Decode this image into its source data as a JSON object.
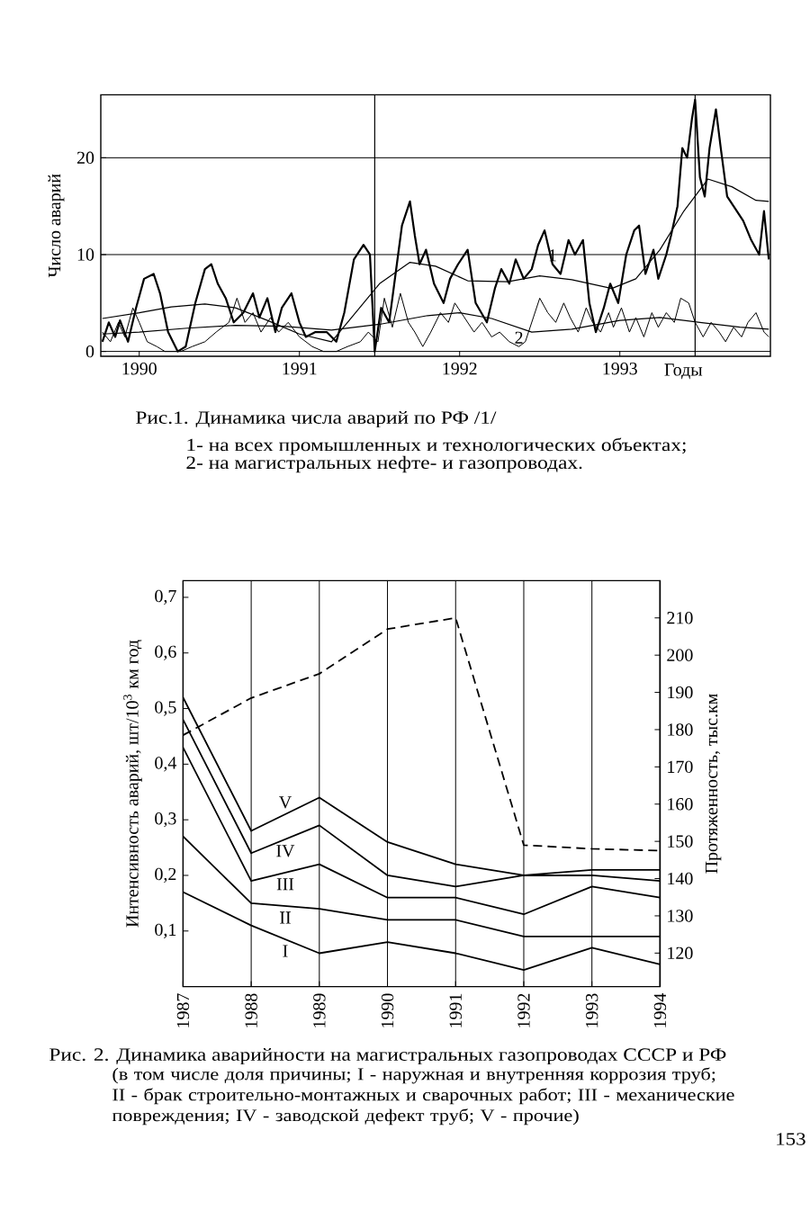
{
  "chart_data": [
    {
      "type": "line",
      "title": "Рис.1. Динамика числа аварий по РФ /1/",
      "annotations": [
        "1- на всех промышленных и технологических объектах;",
        "2- на магистральных нефте- и газопроводах."
      ],
      "xlabel": "Годы",
      "ylabel": "Число аварий",
      "xlim": [
        1989.76,
        1993.94
      ],
      "xticks": [
        1990,
        1991,
        1992,
        1993
      ],
      "ylim": [
        -0.5,
        26.5
      ],
      "yticks": [
        0,
        10,
        20
      ],
      "grid": "y",
      "ref_lines": [
        {
          "axis": "x",
          "value": 1991.47
        },
        {
          "axis": "x",
          "value": 1993.47
        }
      ],
      "series": [
        {
          "name": "1",
          "color": "#000000",
          "x": [
            1989.77,
            1989.81,
            1989.85,
            1989.88,
            1989.93,
            1989.98,
            1990.03,
            1990.09,
            1990.13,
            1990.18,
            1990.24,
            1990.29,
            1990.35,
            1990.41,
            1990.45,
            1990.49,
            1990.54,
            1990.59,
            1990.65,
            1990.71,
            1990.75,
            1990.8,
            1990.85,
            1990.89,
            1990.95,
            1991.0,
            1991.04,
            1991.1,
            1991.17,
            1991.23,
            1991.28,
            1991.34,
            1991.4,
            1991.44,
            1991.47,
            1991.51,
            1991.56,
            1991.6,
            1991.64,
            1991.69,
            1991.72,
            1991.75,
            1991.79,
            1991.84,
            1991.9,
            1991.94,
            1991.99,
            1992.05,
            1992.1,
            1992.17,
            1992.22,
            1992.26,
            1992.31,
            1992.35,
            1992.4,
            1992.45,
            1992.49,
            1992.53,
            1992.58,
            1992.63,
            1992.68,
            1992.72,
            1992.77,
            1992.81,
            1992.85,
            1992.9,
            1992.94,
            1992.99,
            1993.04,
            1993.09,
            1993.12,
            1993.16,
            1993.21,
            1993.24,
            1993.29,
            1993.32,
            1993.36,
            1993.39,
            1993.42,
            1993.45,
            1993.47,
            1993.5,
            1993.53,
            1993.56,
            1993.6,
            1993.63,
            1993.67,
            1993.71,
            1993.77,
            1993.82,
            1993.87,
            1993.9,
            1993.93
          ],
          "values": [
            1.0,
            3.0,
            1.5,
            3.2,
            1.0,
            4.5,
            7.5,
            8.0,
            6.0,
            2.0,
            0.0,
            0.5,
            5.0,
            8.5,
            9.0,
            7.0,
            5.5,
            3.0,
            4.0,
            6.0,
            3.5,
            5.5,
            2.0,
            4.5,
            6.0,
            3.0,
            1.5,
            2.0,
            2.0,
            1.0,
            4.0,
            9.5,
            11.0,
            10.0,
            0.0,
            4.5,
            3.0,
            8.0,
            13.0,
            15.5,
            12.0,
            9.0,
            10.5,
            7.0,
            5.0,
            7.5,
            9.0,
            10.5,
            5.0,
            3.0,
            6.5,
            8.5,
            7.0,
            9.5,
            7.5,
            8.5,
            11.0,
            12.5,
            9.0,
            8.0,
            11.5,
            10.0,
            11.5,
            5.0,
            2.0,
            4.5,
            7.0,
            5.0,
            10.0,
            12.5,
            13.0,
            8.0,
            10.5,
            7.5,
            10.0,
            12.0,
            15.0,
            21.0,
            20.0,
            24.0,
            26.0,
            18.0,
            16.0,
            21.0,
            25.0,
            21.0,
            16.0,
            15.0,
            13.5,
            11.5,
            10.0,
            14.5,
            9.5
          ]
        },
        {
          "name": "2",
          "color": "#000000",
          "x": [
            1989.77,
            1989.82,
            1989.87,
            1989.91,
            1989.96,
            1990.0,
            1990.05,
            1990.11,
            1990.16,
            1990.26,
            1990.33,
            1990.41,
            1990.48,
            1990.56,
            1990.61,
            1990.66,
            1990.71,
            1990.76,
            1990.82,
            1990.87,
            1990.93,
            1991.0,
            1991.08,
            1991.15,
            1991.23,
            1991.3,
            1991.38,
            1991.43,
            1991.49,
            1991.53,
            1991.58,
            1991.63,
            1991.68,
            1991.72,
            1991.77,
            1991.82,
            1991.88,
            1991.93,
            1991.97,
            1992.03,
            1992.09,
            1992.14,
            1992.2,
            1992.25,
            1992.31,
            1992.37,
            1992.41,
            1992.46,
            1992.5,
            1992.55,
            1992.6,
            1992.65,
            1992.69,
            1992.74,
            1992.79,
            1992.83,
            1992.88,
            1992.93,
            1992.96,
            1993.01,
            1993.06,
            1993.1,
            1993.15,
            1993.2,
            1993.24,
            1993.29,
            1993.34,
            1993.38,
            1993.43,
            1993.47,
            1993.52,
            1993.57,
            1993.62,
            1993.66,
            1993.71,
            1993.76,
            1993.8,
            1993.85,
            1993.9,
            1993.93
          ],
          "values": [
            2.0,
            1.0,
            3.0,
            1.5,
            4.5,
            3.0,
            1.0,
            0.5,
            0.0,
            0.0,
            0.5,
            1.0,
            2.0,
            3.0,
            5.5,
            3.0,
            4.0,
            2.0,
            3.5,
            2.0,
            3.0,
            1.5,
            0.5,
            0.0,
            0.0,
            0.5,
            1.0,
            2.0,
            1.0,
            5.5,
            2.5,
            6.0,
            3.0,
            2.0,
            0.5,
            2.0,
            4.0,
            3.0,
            5.0,
            3.5,
            2.0,
            3.0,
            1.5,
            2.0,
            1.0,
            0.5,
            1.0,
            3.5,
            5.5,
            4.0,
            3.0,
            5.0,
            3.5,
            2.0,
            4.5,
            3.0,
            2.0,
            4.0,
            2.5,
            4.5,
            2.0,
            3.5,
            1.5,
            4.0,
            2.5,
            4.0,
            3.0,
            5.5,
            5.0,
            3.0,
            1.5,
            3.0,
            2.0,
            1.0,
            2.5,
            1.5,
            3.0,
            4.0,
            2.0,
            1.5
          ]
        },
        {
          "color": "#000000",
          "x": [
            1989.77,
            1990.0,
            1990.2,
            1990.41,
            1990.6,
            1990.8,
            1991.0,
            1991.2,
            1991.35,
            1991.5,
            1991.69,
            1991.85,
            1992.05,
            1992.3,
            1992.5,
            1992.7,
            1992.95,
            1993.1,
            1993.25,
            1993.4,
            1993.55,
            1993.7,
            1993.85,
            1993.93
          ],
          "values": [
            3.4,
            4.0,
            4.6,
            4.9,
            4.5,
            3.2,
            1.8,
            1.0,
            4.0,
            7.0,
            9.2,
            8.8,
            7.3,
            7.2,
            7.8,
            7.4,
            6.5,
            7.5,
            10.5,
            14.5,
            17.8,
            17.0,
            15.6,
            15.5
          ]
        },
        {
          "color": "#000000",
          "x": [
            1989.77,
            1990.0,
            1990.3,
            1990.6,
            1990.9,
            1991.2,
            1991.5,
            1991.8,
            1992.0,
            1992.2,
            1992.45,
            1992.7,
            1993.0,
            1993.25,
            1993.5,
            1993.75,
            1993.93
          ],
          "values": [
            1.8,
            2.0,
            2.4,
            2.7,
            2.6,
            2.2,
            2.8,
            3.7,
            4.0,
            3.4,
            2.0,
            2.3,
            3.2,
            3.5,
            3.0,
            2.5,
            2.3
          ]
        }
      ]
    },
    {
      "type": "line",
      "title": "Рис. 2. Динамика аварийности на магистральных газопроводах СССР и РФ",
      "subtitle": "(в том числе доля причины; I - наружная и внутренняя коррозия труб; II - брак строительно-монтажных и сварочных работ; III - механические повреждения; IV - заводской дефект труб; V - прочие)",
      "annotations": [
        "153"
      ],
      "categories": [
        "1987",
        "1988",
        "1989",
        "1990",
        "1991",
        "1992",
        "1993",
        "1994"
      ],
      "ylabel": "Интенсивность аварий, шт/10$^{3}$ км год",
      "y2label": "Протяженность, тыс.км",
      "ylim": [
        0,
        0.73
      ],
      "yticks": [
        {
          "value": 0.1,
          "label": "0,1"
        },
        {
          "value": 0.2,
          "label": "0,2"
        },
        {
          "value": 0.3,
          "label": "0,3"
        },
        {
          "value": 0.4,
          "label": "0,4"
        },
        {
          "value": 0.5,
          "label": "0,5"
        },
        {
          "value": 0.6,
          "label": "0,6"
        },
        {
          "value": 0.7,
          "label": "0,7"
        }
      ],
      "y2lim": [
        111,
        220
      ],
      "y2ticks": [
        120,
        130,
        140,
        150,
        160,
        170,
        180,
        190,
        200,
        210
      ],
      "grid": "x",
      "series": [
        {
          "name": "I",
          "color": "#000000",
          "values": [
            0.17,
            0.11,
            0.06,
            0.08,
            0.06,
            0.03,
            0.07,
            0.04
          ]
        },
        {
          "name": "II",
          "color": "#000000",
          "values": [
            0.27,
            0.15,
            0.14,
            0.12,
            0.12,
            0.09,
            0.09,
            0.09
          ]
        },
        {
          "name": "III",
          "color": "#000000",
          "values": [
            0.43,
            0.19,
            0.22,
            0.16,
            0.16,
            0.13,
            0.18,
            0.16
          ]
        },
        {
          "name": "IV",
          "color": "#000000",
          "values": [
            0.48,
            0.24,
            0.29,
            0.2,
            0.18,
            0.2,
            0.2,
            0.19
          ]
        },
        {
          "name": "V",
          "color": "#000000",
          "values": [
            0.52,
            0.28,
            0.34,
            0.26,
            0.22,
            0.2,
            0.21,
            0.21
          ]
        },
        {
          "color": "#000000",
          "axis": "y2",
          "line_style": "dashed",
          "values": [
            178.5,
            188.5,
            195,
            207,
            210,
            149,
            148,
            147.5
          ]
        }
      ]
    }
  ]
}
